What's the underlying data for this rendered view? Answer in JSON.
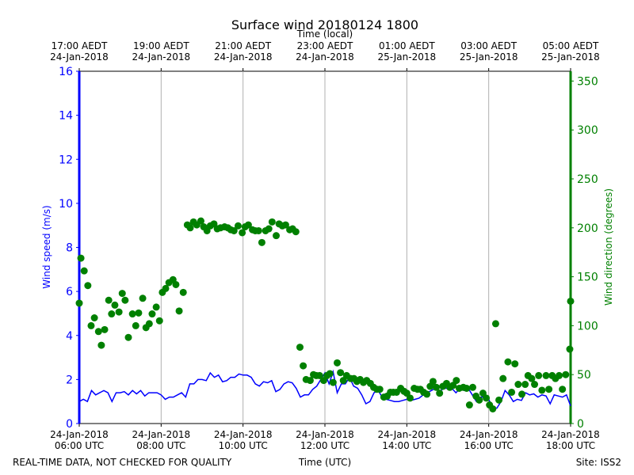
{
  "chart_data": {
    "type": "line",
    "title": "Surface wind 20180124 1800",
    "x2label": "Time (local)",
    "xlabel": "Time (UTC)",
    "ylabel": "Wind speed (m/s)",
    "y2label": "Wind direction (degrees)",
    "footer_left": "REAL-TIME DATA, NOT CHECKED FOR QUALITY",
    "footer_right": "Site: ISS2",
    "grid": "x",
    "ycolor": "blue",
    "y2color": "green",
    "xlim": [
      6,
      18
    ],
    "xticks": [
      {
        "value": 6,
        "label": "24-Jan-2018\n06:00 UTC"
      },
      {
        "value": 8,
        "label": "24-Jan-2018\n08:00 UTC"
      },
      {
        "value": 10,
        "label": "24-Jan-2018\n10:00 UTC"
      },
      {
        "value": 12,
        "label": "24-Jan-2018\n12:00 UTC"
      },
      {
        "value": 14,
        "label": "24-Jan-2018\n14:00 UTC"
      },
      {
        "value": 16,
        "label": "24-Jan-2018\n16:00 UTC"
      },
      {
        "value": 18,
        "label": "24-Jan-2018\n18:00 UTC"
      }
    ],
    "x2ticks": [
      {
        "value": 6,
        "label": "17:00 AEDT\n24-Jan-2018"
      },
      {
        "value": 8,
        "label": "19:00 AEDT\n24-Jan-2018"
      },
      {
        "value": 10,
        "label": "21:00 AEDT\n24-Jan-2018"
      },
      {
        "value": 12,
        "label": "23:00 AEDT\n24-Jan-2018"
      },
      {
        "value": 14,
        "label": "01:00 AEDT\n25-Jan-2018"
      },
      {
        "value": 16,
        "label": "03:00 AEDT\n25-Jan-2018"
      },
      {
        "value": 18,
        "label": "05:00 AEDT\n25-Jan-2018"
      }
    ],
    "ylim": [
      0,
      16
    ],
    "yticks": [
      0,
      2,
      4,
      6,
      8,
      10,
      12,
      14,
      16
    ],
    "y2lim": [
      0,
      360
    ],
    "y2ticks": [
      0,
      50,
      100,
      150,
      200,
      250,
      300,
      350
    ],
    "series": [
      {
        "type": "line",
        "color": "blue",
        "axis": "y",
        "x": [
          6.0,
          6.1,
          6.2,
          6.3,
          6.4,
          6.5,
          6.6,
          6.7,
          6.8,
          6.9,
          7.0,
          7.1,
          7.2,
          7.3,
          7.4,
          7.5,
          7.6,
          7.7,
          7.8,
          7.9,
          8.0,
          8.1,
          8.2,
          8.3,
          8.4,
          8.5,
          8.6,
          8.7,
          8.8,
          8.9,
          9.0,
          9.1,
          9.2,
          9.3,
          9.4,
          9.5,
          9.6,
          9.7,
          9.8,
          9.9,
          10.0,
          10.1,
          10.2,
          10.3,
          10.4,
          10.5,
          10.6,
          10.7,
          10.8,
          10.9,
          11.0,
          11.1,
          11.2,
          11.3,
          11.4,
          11.5,
          11.6,
          11.7,
          11.8,
          11.9,
          12.0,
          12.1,
          12.2,
          12.3,
          12.4,
          12.5,
          12.6,
          12.7,
          12.8,
          12.9,
          13.0,
          13.1,
          13.2,
          13.3,
          13.4,
          13.5,
          13.6,
          13.7,
          13.8,
          13.9,
          14.0,
          14.1,
          14.2,
          14.3,
          14.4,
          14.5,
          14.6,
          14.7,
          14.8,
          14.9,
          15.0,
          15.1,
          15.2,
          15.3,
          15.4,
          15.5,
          15.6,
          15.7,
          15.8,
          15.9,
          16.0,
          16.1,
          16.2,
          16.3,
          16.4,
          16.5,
          16.6,
          16.7,
          16.8,
          16.9,
          17.0,
          17.1,
          17.2,
          17.3,
          17.4,
          17.5,
          17.6,
          17.7,
          17.8,
          17.9,
          18.0
        ],
        "values": [
          1.0,
          1.1,
          1.0,
          1.5,
          1.3,
          1.4,
          1.5,
          1.4,
          1.0,
          1.4,
          1.4,
          1.45,
          1.3,
          1.5,
          1.35,
          1.5,
          1.25,
          1.4,
          1.4,
          1.4,
          1.3,
          1.1,
          1.2,
          1.2,
          1.3,
          1.4,
          1.2,
          1.8,
          1.8,
          2.0,
          2.0,
          1.95,
          2.3,
          2.1,
          2.2,
          1.9,
          1.95,
          2.1,
          2.1,
          2.25,
          2.2,
          2.2,
          2.1,
          1.8,
          1.7,
          1.9,
          1.85,
          1.95,
          1.45,
          1.55,
          1.8,
          1.9,
          1.85,
          1.6,
          1.2,
          1.3,
          1.3,
          1.55,
          1.7,
          2.0,
          2.3,
          1.8,
          2.35,
          1.4,
          1.8,
          1.8,
          2.1,
          1.7,
          1.6,
          1.3,
          0.9,
          1.0,
          1.4,
          1.5,
          1.2,
          1.1,
          1.05,
          1.0,
          1.0,
          1.05,
          1.1,
          1.05,
          1.1,
          1.15,
          1.3,
          1.4,
          1.5,
          1.6,
          1.45,
          1.6,
          1.6,
          1.6,
          1.4,
          1.6,
          1.5,
          1.6,
          1.3,
          1.0,
          1.2,
          1.2,
          1.1,
          0.7,
          0.7,
          1.0,
          1.5,
          1.3,
          1.0,
          1.1,
          1.05,
          1.4,
          1.3,
          1.35,
          1.2,
          1.3,
          1.25,
          0.9,
          1.3,
          1.25,
          1.2,
          1.3,
          0.8
        ]
      },
      {
        "type": "scatter",
        "color": "green",
        "axis": "y2",
        "x": [
          6.0,
          6.04,
          6.12,
          6.21,
          6.29,
          6.37,
          6.47,
          6.54,
          6.62,
          6.72,
          6.79,
          6.87,
          6.97,
          7.05,
          7.12,
          7.2,
          7.3,
          7.38,
          7.45,
          7.55,
          7.63,
          7.71,
          7.78,
          7.88,
          7.96,
          8.03,
          8.11,
          8.19,
          8.29,
          8.36,
          8.44,
          8.54,
          8.64,
          8.71,
          8.79,
          8.87,
          8.97,
          9.04,
          9.12,
          9.2,
          9.29,
          9.37,
          9.45,
          9.55,
          9.63,
          9.7,
          9.78,
          9.88,
          9.98,
          10.05,
          10.13,
          10.23,
          10.3,
          10.38,
          10.46,
          10.55,
          10.63,
          10.71,
          10.81,
          10.88,
          10.96,
          11.04,
          11.14,
          11.21,
          11.29,
          11.39,
          11.47,
          11.54,
          11.64,
          11.72,
          11.79,
          11.87,
          11.97,
          12.05,
          12.12,
          12.2,
          12.3,
          12.38,
          12.45,
          12.53,
          12.63,
          12.71,
          12.78,
          12.86,
          12.94,
          13.02,
          13.11,
          13.19,
          13.27,
          13.34,
          13.44,
          13.52,
          13.6,
          13.67,
          13.75,
          13.85,
          13.93,
          14.0,
          14.08,
          14.18,
          14.26,
          14.33,
          14.41,
          14.49,
          14.57,
          14.64,
          14.72,
          14.8,
          14.88,
          14.97,
          15.05,
          15.13,
          15.21,
          15.28,
          15.38,
          15.46,
          15.53,
          15.61,
          15.69,
          15.77,
          15.86,
          15.94,
          16.02,
          16.1,
          16.17,
          16.25,
          16.35,
          16.47,
          16.56,
          16.64,
          16.72,
          16.81,
          16.89,
          16.96,
          17.05,
          17.12,
          17.22,
          17.3,
          17.4,
          17.47,
          17.55,
          17.63,
          17.72,
          17.8,
          17.88,
          17.98,
          18.0
        ],
        "values": [
          123,
          169,
          156,
          141,
          100,
          108,
          94,
          80,
          96,
          126,
          112,
          121,
          114,
          133,
          126,
          88,
          112,
          100,
          113,
          128,
          98,
          102,
          112,
          119,
          105,
          134,
          138,
          144,
          147,
          142,
          115,
          134,
          203,
          200,
          206,
          203,
          207,
          201,
          197,
          202,
          204,
          199,
          200,
          201,
          200,
          198,
          197,
          202,
          195,
          201,
          203,
          198,
          197,
          197,
          185,
          197,
          199,
          206,
          192,
          204,
          202,
          203,
          198,
          199,
          196,
          78,
          59,
          45,
          44,
          50,
          49,
          49,
          44,
          49,
          51,
          42,
          62,
          52,
          44,
          49,
          46,
          46,
          43,
          45,
          42,
          44,
          41,
          37,
          35,
          35,
          27,
          28,
          32,
          32,
          32,
          36,
          33,
          31,
          26,
          36,
          35,
          35,
          32,
          30,
          38,
          43,
          37,
          31,
          38,
          41,
          37,
          39,
          44,
          36,
          37,
          36,
          19,
          37,
          28,
          24,
          31,
          26,
          19,
          15,
          102,
          24,
          46,
          63,
          32,
          61,
          40,
          30,
          40,
          49,
          46,
          40,
          49,
          34,
          49,
          35,
          49,
          46,
          49,
          35,
          50,
          76,
          125
        ]
      }
    ]
  }
}
